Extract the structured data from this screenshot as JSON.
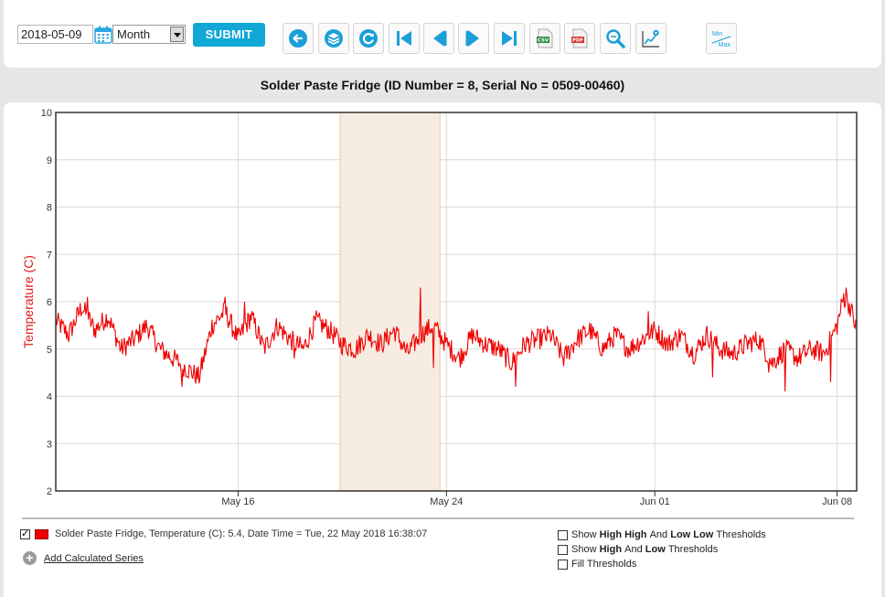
{
  "toolbar": {
    "date_value": "2018-05-09",
    "period_value": "Month",
    "submit_label": "SUBMIT",
    "buttons": [
      {
        "name": "back-button",
        "icon": "arrow-left-icon"
      },
      {
        "name": "layers-button",
        "icon": "layers-icon"
      },
      {
        "name": "refresh-button",
        "icon": "refresh-icon"
      },
      {
        "name": "first-button",
        "icon": "skip-first-icon"
      },
      {
        "name": "previous-button",
        "icon": "previous-icon"
      },
      {
        "name": "next-button",
        "icon": "next-icon"
      },
      {
        "name": "last-button",
        "icon": "skip-last-icon"
      },
      {
        "name": "csv-button",
        "icon": "csv-file-icon",
        "text": "CSV"
      },
      {
        "name": "pdf-button",
        "icon": "pdf-file-icon",
        "text": "PDF"
      },
      {
        "name": "zoom-button",
        "icon": "zoom-icon"
      },
      {
        "name": "chart-settings-button",
        "icon": "chart-gear-icon"
      },
      {
        "name": "min-max-button",
        "icon": "min-max-icon",
        "min_label": "Min",
        "max_label": "Max"
      }
    ]
  },
  "title": "Solder Paste Fridge (ID Number = 8, Serial No = 0509-00460)",
  "chart_data": {
    "type": "line",
    "ylabel": "Temperature (C)",
    "ylim": [
      2,
      10
    ],
    "yticks": [
      "2",
      "3",
      "4",
      "5",
      "6",
      "7",
      "8",
      "9",
      "10"
    ],
    "xlim": [
      "2018-05-09T00:00",
      "2018-06-08T18:00"
    ],
    "xticks": [
      {
        "label": "May 16",
        "date": "2018-05-16"
      },
      {
        "label": "May 24",
        "date": "2018-05-24"
      },
      {
        "label": "Jun 01",
        "date": "2018-06-01"
      },
      {
        "label": "Jun 08",
        "date": "2018-06-08"
      }
    ],
    "highlight_band": {
      "from": "2018-05-19T22:00",
      "to": "2018-05-23T18:00"
    },
    "grid": true,
    "series": [
      {
        "color": "#ee0000",
        "keypoints": [
          [
            "2018-05-09T00:00",
            5.6
          ],
          [
            "2018-05-09T12:00",
            5.3
          ],
          [
            "2018-05-10T00:00",
            5.9
          ],
          [
            "2018-05-10T12:00",
            5.4
          ],
          [
            "2018-05-11T00:00",
            5.7
          ],
          [
            "2018-05-11T12:00",
            5.0
          ],
          [
            "2018-05-12T00:00",
            5.2
          ],
          [
            "2018-05-12T12:00",
            5.5
          ],
          [
            "2018-05-13T00:00",
            5.0
          ],
          [
            "2018-05-13T12:00",
            4.8
          ],
          [
            "2018-05-14T00:00",
            4.6
          ],
          [
            "2018-05-14T12:00",
            4.4
          ],
          [
            "2018-05-15T00:00",
            5.5
          ],
          [
            "2018-05-15T12:00",
            5.8
          ],
          [
            "2018-05-16T00:00",
            5.2
          ],
          [
            "2018-05-16T12:00",
            5.7
          ],
          [
            "2018-05-17T00:00",
            5.0
          ],
          [
            "2018-05-17T12:00",
            5.5
          ],
          [
            "2018-05-18T00:00",
            5.2
          ],
          [
            "2018-05-18T12:00",
            5.0
          ],
          [
            "2018-05-19T00:00",
            5.6
          ],
          [
            "2018-05-19T12:00",
            5.4
          ],
          [
            "2018-05-20T00:00",
            5.1
          ],
          [
            "2018-05-20T12:00",
            5.0
          ],
          [
            "2018-05-21T00:00",
            5.3
          ],
          [
            "2018-05-21T12:00",
            5.1
          ],
          [
            "2018-05-22T00:00",
            5.4
          ],
          [
            "2018-05-22T12:00",
            4.9
          ],
          [
            "2018-05-23T00:00",
            5.3
          ],
          [
            "2018-05-23T12:00",
            5.5
          ],
          [
            "2018-05-24T00:00",
            5.1
          ],
          [
            "2018-05-24T12:00",
            4.8
          ],
          [
            "2018-05-25T00:00",
            5.3
          ],
          [
            "2018-05-25T12:00",
            5.1
          ],
          [
            "2018-05-26T00:00",
            5.0
          ],
          [
            "2018-05-26T12:00",
            4.7
          ],
          [
            "2018-05-27T00:00",
            5.1
          ],
          [
            "2018-05-27T12:00",
            5.2
          ],
          [
            "2018-05-28T00:00",
            5.3
          ],
          [
            "2018-05-28T12:00",
            4.8
          ],
          [
            "2018-05-29T00:00",
            5.2
          ],
          [
            "2018-05-29T12:00",
            5.4
          ],
          [
            "2018-05-30T00:00",
            5.0
          ],
          [
            "2018-05-30T12:00",
            5.3
          ],
          [
            "2018-05-31T00:00",
            5.0
          ],
          [
            "2018-05-31T12:00",
            5.2
          ],
          [
            "2018-06-01T00:00",
            5.4
          ],
          [
            "2018-06-01T12:00",
            5.1
          ],
          [
            "2018-06-02T00:00",
            5.3
          ],
          [
            "2018-06-02T12:00",
            4.9
          ],
          [
            "2018-06-03T00:00",
            5.3
          ],
          [
            "2018-06-03T12:00",
            5.0
          ],
          [
            "2018-06-04T00:00",
            4.9
          ],
          [
            "2018-06-04T12:00",
            5.1
          ],
          [
            "2018-06-05T00:00",
            5.2
          ],
          [
            "2018-06-05T12:00",
            4.7
          ],
          [
            "2018-06-06T00:00",
            5.0
          ],
          [
            "2018-06-06T12:00",
            4.8
          ],
          [
            "2018-06-07T00:00",
            5.0
          ],
          [
            "2018-06-07T12:00",
            4.9
          ],
          [
            "2018-06-08T00:00",
            5.5
          ],
          [
            "2018-06-08T06:00",
            6.1
          ],
          [
            "2018-06-08T12:00",
            5.9
          ],
          [
            "2018-06-08T18:00",
            5.4
          ]
        ],
        "spikes": [
          [
            "2018-05-10T05:00",
            6.1
          ],
          [
            "2018-05-13T20:00",
            4.2
          ],
          [
            "2018-05-15T12:00",
            6.1
          ],
          [
            "2018-05-16T06:00",
            6.0
          ],
          [
            "2018-05-18T04:00",
            4.8
          ],
          [
            "2018-05-23T00:00",
            6.3
          ],
          [
            "2018-05-23T12:00",
            4.6
          ],
          [
            "2018-05-26T16:00",
            4.2
          ],
          [
            "2018-05-31T18:00",
            5.8
          ],
          [
            "2018-06-03T05:00",
            4.4
          ],
          [
            "2018-06-05T09:00",
            4.5
          ],
          [
            "2018-06-06T00:00",
            4.1
          ],
          [
            "2018-06-07T18:00",
            4.3
          ],
          [
            "2018-06-08T08:00",
            6.3
          ]
        ]
      }
    ]
  },
  "legend": {
    "series_label": "Solder Paste Fridge, Temperature (C): 5.4, Date Time = Tue, 22 May 2018 16:38:07",
    "add_calculated_label": "Add Calculated Series"
  },
  "thresholds": {
    "row1": {
      "pre": "Show ",
      "b1": "High High",
      "mid": " And ",
      "b2": "Low Low",
      "post": " Thresholds"
    },
    "row2": {
      "pre": "Show ",
      "b1": "High",
      "mid": " And ",
      "b2": "Low",
      "post": " Thresholds"
    },
    "row3": {
      "label": "Fill Thresholds"
    }
  }
}
